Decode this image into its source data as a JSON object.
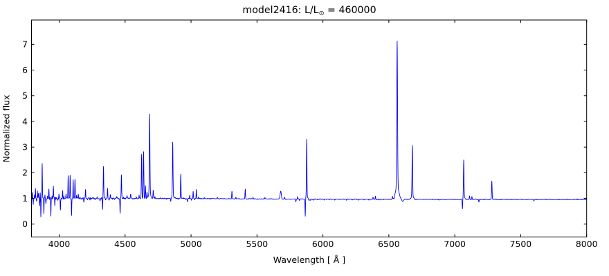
{
  "figure": {
    "title": {
      "prefix": "model2416: L/L",
      "sub": "⊙",
      "suffix": " = 460000"
    }
  },
  "chart_data": {
    "type": "line",
    "title": "model2416: L/L⊙ = 460000",
    "xlabel": "Wavelength [ Å ]",
    "ylabel": "Normalized flux",
    "xlim": [
      3790,
      8000
    ],
    "ylim": [
      -0.5,
      7.95
    ],
    "x_ticks": [
      4000,
      4500,
      5000,
      5500,
      6000,
      6500,
      7000,
      7500,
      8000
    ],
    "y_ticks": [
      0,
      1,
      2,
      3,
      4,
      5,
      6,
      7
    ],
    "grid": false,
    "legend": false,
    "line_color": "#0000ee",
    "axis_color": "#000000",
    "background": "#ffffff",
    "continuum": [
      [
        3790,
        1.0
      ],
      [
        4900,
        1.0
      ],
      [
        5900,
        0.97
      ],
      [
        8000,
        0.957
      ]
    ],
    "noise_bands": [
      [
        3790,
        4020,
        0.045
      ],
      [
        4020,
        4560,
        0.028
      ],
      [
        4560,
        5840,
        0.012
      ],
      [
        5840,
        6460,
        0.013
      ],
      [
        6460,
        8000,
        0.01
      ]
    ],
    "spectral_lines": [
      [
        3797,
        1.22,
        1.2
      ],
      [
        3803,
        0.8,
        1.2
      ],
      [
        3813,
        1.15,
        1.2
      ],
      [
        3820,
        1.38,
        1.3
      ],
      [
        3828,
        0.9,
        1.2
      ],
      [
        3835,
        1.26,
        1.2
      ],
      [
        3843,
        1.18,
        1.2
      ],
      [
        3852,
        0.75,
        1.2
      ],
      [
        3856,
        1.18,
        1.2
      ],
      [
        3861,
        0.32,
        1.3
      ],
      [
        3871,
        2.32,
        1.6
      ],
      [
        3884,
        0.38,
        1.4
      ],
      [
        3892,
        1.12,
        1.2
      ],
      [
        3899,
        0.8,
        1.5
      ],
      [
        3912,
        1.1,
        1.2
      ],
      [
        3922,
        1.33,
        1.5
      ],
      [
        3937,
        0.3,
        1.4
      ],
      [
        3946,
        1.12,
        1.2
      ],
      [
        3956,
        1.47,
        1.5
      ],
      [
        3967,
        0.7,
        1.3
      ],
      [
        3978,
        1.08,
        1.2
      ],
      [
        3990,
        0.92,
        1.2
      ],
      [
        3998,
        1.22,
        1.3
      ],
      [
        4009,
        0.52,
        1.4
      ],
      [
        4026,
        1.33,
        1.6
      ],
      [
        4036,
        1.12,
        1.3
      ],
      [
        4052,
        1.15,
        1.3
      ],
      [
        4068,
        1.86,
        1.6
      ],
      [
        4083,
        1.92,
        1.5
      ],
      [
        4094,
        0.34,
        1.4
      ],
      [
        4106,
        1.73,
        1.5
      ],
      [
        4120,
        1.77,
        1.7
      ],
      [
        4132,
        1.15,
        1.3
      ],
      [
        4145,
        1.18,
        1.5
      ],
      [
        4158,
        1.08,
        1.3
      ],
      [
        4172,
        0.94,
        1.3
      ],
      [
        4187,
        0.88,
        1.5
      ],
      [
        4200,
        1.37,
        1.6
      ],
      [
        4215,
        0.96,
        1.3
      ],
      [
        4233,
        0.94,
        1.5
      ],
      [
        4255,
        1.04,
        1.3
      ],
      [
        4272,
        0.96,
        1.3
      ],
      [
        4288,
        1.05,
        1.3
      ],
      [
        4310,
        0.9,
        1.6
      ],
      [
        4329,
        0.56,
        1.5
      ],
      [
        4336,
        2.25,
        1.9
      ],
      [
        4352,
        0.96,
        1.3
      ],
      [
        4367,
        1.37,
        1.6
      ],
      [
        4380,
        0.94,
        1.3
      ],
      [
        4388,
        1.14,
        1.5
      ],
      [
        4404,
        0.95,
        1.4
      ],
      [
        4420,
        0.96,
        1.5
      ],
      [
        4437,
        1.09,
        1.5
      ],
      [
        4462,
        0.43,
        1.6
      ],
      [
        4472,
        1.9,
        1.9
      ],
      [
        4488,
        1.06,
        1.4
      ],
      [
        4515,
        1.1,
        1.6
      ],
      [
        4542,
        1.16,
        1.8
      ],
      [
        4568,
        0.96,
        1.6
      ],
      [
        4585,
        1.07,
        1.5
      ],
      [
        4606,
        1.12,
        1.7
      ],
      [
        4625,
        2.72,
        2.0
      ],
      [
        4640,
        2.82,
        2.1
      ],
      [
        4654,
        1.5,
        1.8
      ],
      [
        4666,
        1.25,
        1.8
      ],
      [
        4686,
        4.03,
        2.2
      ],
      [
        4686,
        1.25,
        7
      ],
      [
        4713,
        1.33,
        1.8
      ],
      [
        4726,
        1.06,
        1.6
      ],
      [
        4770,
        1.03,
        1.6
      ],
      [
        4815,
        0.96,
        1.6
      ],
      [
        4846,
        0.88,
        1.6
      ],
      [
        4861,
        3.08,
        2.1
      ],
      [
        4861,
        1.12,
        7
      ],
      [
        4880,
        1.03,
        1.6
      ],
      [
        4902,
        0.97,
        1.5
      ],
      [
        4922,
        1.94,
        1.9
      ],
      [
        4940,
        1.04,
        1.6
      ],
      [
        4958,
        0.96,
        1.5
      ],
      [
        4972,
        0.86,
        1.6
      ],
      [
        4990,
        1.14,
        1.5
      ],
      [
        5003,
        0.94,
        1.4
      ],
      [
        5016,
        1.27,
        1.6
      ],
      [
        5028,
        0.95,
        1.4
      ],
      [
        5040,
        1.36,
        1.6
      ],
      [
        5056,
        1.05,
        1.4
      ],
      [
        5100,
        1.04,
        1.6
      ],
      [
        5143,
        0.97,
        1.5
      ],
      [
        5200,
        1.04,
        1.8
      ],
      [
        5245,
        0.98,
        1.5
      ],
      [
        5310,
        1.27,
        1.8
      ],
      [
        5340,
        1.05,
        1.6
      ],
      [
        5365,
        0.98,
        1.5
      ],
      [
        5411,
        1.36,
        1.8
      ],
      [
        5440,
        0.98,
        1.5
      ],
      [
        5470,
        1.03,
        1.6
      ],
      [
        5520,
        0.98,
        1.5
      ],
      [
        5560,
        1.03,
        1.6
      ],
      [
        5620,
        0.98,
        1.6
      ],
      [
        5680,
        1.28,
        4.5
      ],
      [
        5710,
        1.05,
        1.6
      ],
      [
        5750,
        0.97,
        1.6
      ],
      [
        5795,
        0.87,
        1.8
      ],
      [
        5808,
        1.06,
        1.5
      ],
      [
        5822,
        0.91,
        1.6
      ],
      [
        5840,
        0.96,
        1.5
      ],
      [
        5866,
        0.28,
        1.6
      ],
      [
        5877,
        3.17,
        1.9
      ],
      [
        5877,
        1.1,
        7
      ],
      [
        5895,
        0.93,
        4
      ],
      [
        5905,
        0.93,
        1.5
      ],
      [
        5930,
        0.94,
        1.5
      ],
      [
        5960,
        0.95,
        1.5
      ],
      [
        6010,
        0.93,
        1.6
      ],
      [
        6048,
        0.95,
        1.5
      ],
      [
        6090,
        0.93,
        1.6
      ],
      [
        6130,
        0.95,
        1.5
      ],
      [
        6180,
        0.93,
        1.6
      ],
      [
        6225,
        0.95,
        1.5
      ],
      [
        6270,
        0.93,
        1.6
      ],
      [
        6310,
        0.95,
        1.5
      ],
      [
        6350,
        0.94,
        1.5
      ],
      [
        6380,
        1.05,
        1.5
      ],
      [
        6398,
        1.09,
        1.6
      ],
      [
        6430,
        0.95,
        1.5
      ],
      [
        6460,
        0.96,
        1.5
      ],
      [
        6495,
        0.97,
        1.5
      ],
      [
        6527,
        1.08,
        1.6
      ],
      [
        6540,
        0.9,
        1.5
      ],
      [
        6563,
        6.65,
        2.9
      ],
      [
        6563,
        1.45,
        13
      ],
      [
        6604,
        0.88,
        6
      ],
      [
        6640,
        0.96,
        1.5
      ],
      [
        6678,
        2.92,
        2.2
      ],
      [
        6678,
        1.1,
        8
      ],
      [
        6700,
        0.95,
        1.6
      ],
      [
        6740,
        0.97,
        1.5
      ],
      [
        6830,
        0.95,
        1.6
      ],
      [
        6880,
        0.93,
        2.0
      ],
      [
        6930,
        0.96,
        1.6
      ],
      [
        6990,
        0.97,
        1.5
      ],
      [
        7040,
        0.97,
        1.5
      ],
      [
        7058,
        0.56,
        1.8
      ],
      [
        7068,
        2.38,
        2.1
      ],
      [
        7068,
        1.08,
        7
      ],
      [
        7090,
        0.97,
        1.5
      ],
      [
        7112,
        1.1,
        1.7
      ],
      [
        7130,
        1.08,
        1.7
      ],
      [
        7160,
        0.98,
        1.5
      ],
      [
        7183,
        0.86,
        2.0
      ],
      [
        7222,
        0.97,
        1.5
      ],
      [
        7242,
        0.96,
        1.5
      ],
      [
        7281,
        1.67,
        2.1
      ],
      [
        7310,
        0.98,
        1.5
      ],
      [
        7390,
        0.97,
        1.5
      ],
      [
        7450,
        0.97,
        1.6
      ],
      [
        7513,
        0.95,
        1.6
      ],
      [
        7560,
        0.97,
        1.5
      ],
      [
        7600,
        0.9,
        2.2
      ],
      [
        7622,
        0.94,
        1.6
      ],
      [
        7680,
        0.97,
        1.5
      ],
      [
        7720,
        0.97,
        1.5
      ],
      [
        7772,
        0.96,
        1.6
      ],
      [
        7850,
        0.98,
        1.5
      ],
      [
        7930,
        0.98,
        1.5
      ],
      [
        7980,
        0.98,
        1.5
      ]
    ]
  }
}
